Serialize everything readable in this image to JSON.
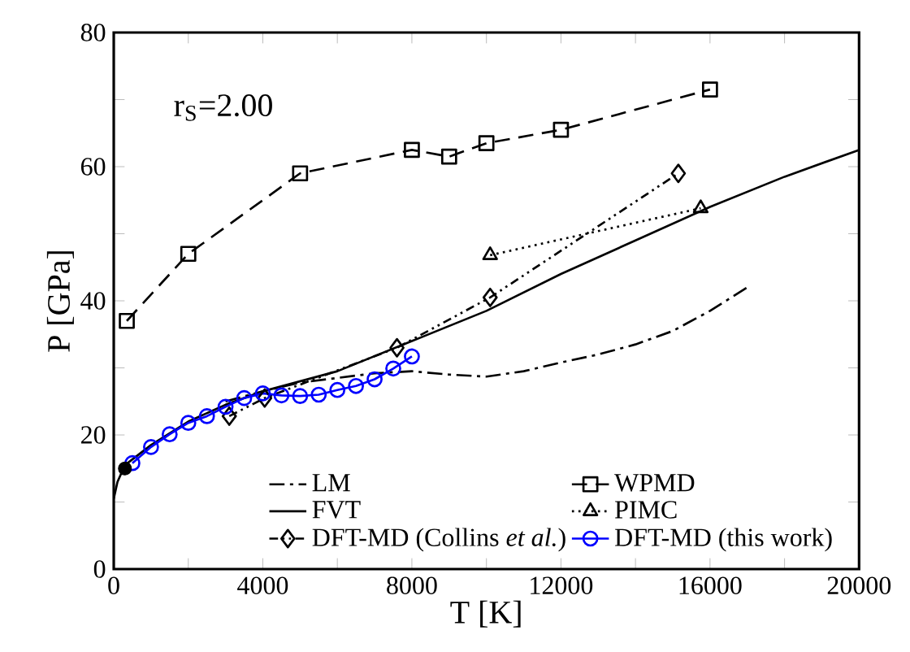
{
  "chart_data": {
    "type": "line",
    "xlabel": "T [K]",
    "ylabel": "P [GPa]",
    "annotations": [
      "r$_{S}$=2.00"
    ],
    "xlim": [
      0,
      20000
    ],
    "ylim": [
      0,
      80
    ],
    "xticks": [
      0,
      {
        "value": 2000,
        "label": null
      },
      4000,
      {
        "value": 6000,
        "label": null
      },
      8000,
      {
        "value": 10000,
        "label": null
      },
      12000,
      {
        "value": 14000,
        "label": null
      },
      16000,
      {
        "value": 18000,
        "label": null
      },
      20000
    ],
    "yticks": [
      0,
      {
        "value": 10,
        "label": null
      },
      20,
      {
        "value": 30,
        "label": null
      },
      40,
      {
        "value": 50,
        "label": null
      },
      60,
      {
        "value": 70,
        "label": null
      },
      80
    ],
    "grid": false,
    "legend": "bottom right",
    "series": [
      {
        "name": "LM",
        "color": "#000000",
        "line_style": "dashdot",
        "marker": "none",
        "x": [
          3000,
          4000,
          5000,
          6000,
          7000,
          8000,
          9000,
          10000,
          11000,
          12000,
          13000,
          14000,
          15000,
          16000,
          17000
        ],
        "values": [
          25,
          26.5,
          27.8,
          28.5,
          29.2,
          29.5,
          29,
          28.7,
          29.5,
          30.8,
          32,
          33.5,
          35.5,
          38.5,
          42
        ]
      },
      {
        "name": "WPMD",
        "color": "#000000",
        "line_style": "dashed",
        "marker": "square",
        "x": [
          350,
          2000,
          5000,
          8000,
          9000,
          10000,
          12000,
          16000
        ],
        "values": [
          37,
          47,
          59,
          62.5,
          61.5,
          63.5,
          65.5,
          71.5
        ]
      },
      {
        "name": "FVT",
        "color": "#000000",
        "line_style": "solid",
        "marker": "none",
        "x": [
          0,
          100,
          300,
          1000,
          2000,
          3000,
          4000,
          6000,
          8000,
          10000,
          12000,
          14000,
          16000,
          18000,
          20000
        ],
        "values": [
          10.5,
          13,
          15.5,
          18.5,
          22,
          24.5,
          26.5,
          29.5,
          34,
          38.5,
          44,
          49,
          54,
          58.5,
          62.5
        ]
      },
      {
        "name": "PIMC",
        "color": "#000000",
        "line_style": "dotted",
        "marker": "triangle",
        "x": [
          10100,
          15750
        ],
        "values": [
          46.8,
          53.8
        ]
      },
      {
        "name": "DFT-MD (Collins *et al.*)",
        "color": "#000000",
        "line_style": "dashdotdot",
        "marker": "diamond",
        "x": [
          3100,
          4050,
          7600,
          10100,
          15150
        ],
        "values": [
          22.8,
          25.5,
          33,
          40.5,
          59
        ]
      },
      {
        "name": "DFT-MD (this work)",
        "color": "#0000ff",
        "line_style": "solid",
        "marker": "circle",
        "x": [
          500,
          1000,
          1500,
          2000,
          2500,
          3000,
          3500,
          4000,
          4500,
          5000,
          5500,
          6000,
          6500,
          7000,
          7500,
          8000
        ],
        "values": [
          15.8,
          18.2,
          20.1,
          21.8,
          22.8,
          24.2,
          25.5,
          26.2,
          25.9,
          25.8,
          26,
          26.7,
          27.3,
          28.3,
          29.9,
          31.7
        ]
      },
      {
        "type": "scatter",
        "color": "#000000",
        "marker": "filled circle",
        "x": [
          300
        ],
        "values": [
          15
        ]
      }
    ]
  }
}
